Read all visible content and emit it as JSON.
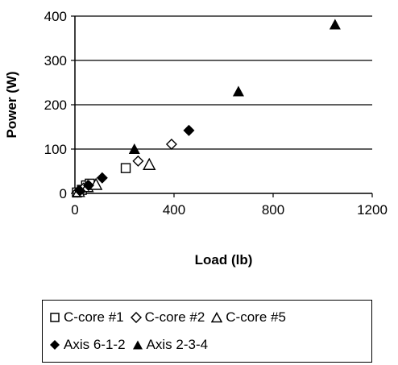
{
  "chart_data": {
    "type": "scatter",
    "xlabel": "Load (lb)",
    "ylabel": "Power (W)",
    "xlim": [
      0,
      1200
    ],
    "ylim": [
      0,
      400
    ],
    "x_ticks": [
      "0",
      "400",
      "800",
      "1200"
    ],
    "y_ticks": [
      "0",
      "100",
      "200",
      "300",
      "400"
    ],
    "x_tick_values": [
      0,
      400,
      800,
      1200
    ],
    "y_tick_values": [
      0,
      100,
      200,
      300,
      400
    ],
    "grid": "horizontal",
    "legend_position": "bottom",
    "series": [
      {
        "name": "C-core #1",
        "marker": "square-open",
        "x": [
          8,
          28,
          45,
          60,
          205
        ],
        "y": [
          2,
          8,
          18,
          22,
          57
        ]
      },
      {
        "name": "C-core #2",
        "marker": "diamond-open",
        "x": [
          10,
          35,
          255,
          390
        ],
        "y": [
          3,
          12,
          73,
          111
        ]
      },
      {
        "name": "C-core #5",
        "marker": "triangle-open",
        "x": [
          15,
          50,
          85,
          300
        ],
        "y": [
          4,
          15,
          20,
          65
        ]
      },
      {
        "name": "Axis 6-1-2",
        "marker": "diamond-filled",
        "x": [
          20,
          55,
          110,
          460
        ],
        "y": [
          6,
          18,
          35,
          142
        ]
      },
      {
        "name": "Axis 2-3-4",
        "marker": "triangle-filled",
        "x": [
          240,
          660,
          1050
        ],
        "y": [
          100,
          230,
          381
        ]
      }
    ]
  }
}
